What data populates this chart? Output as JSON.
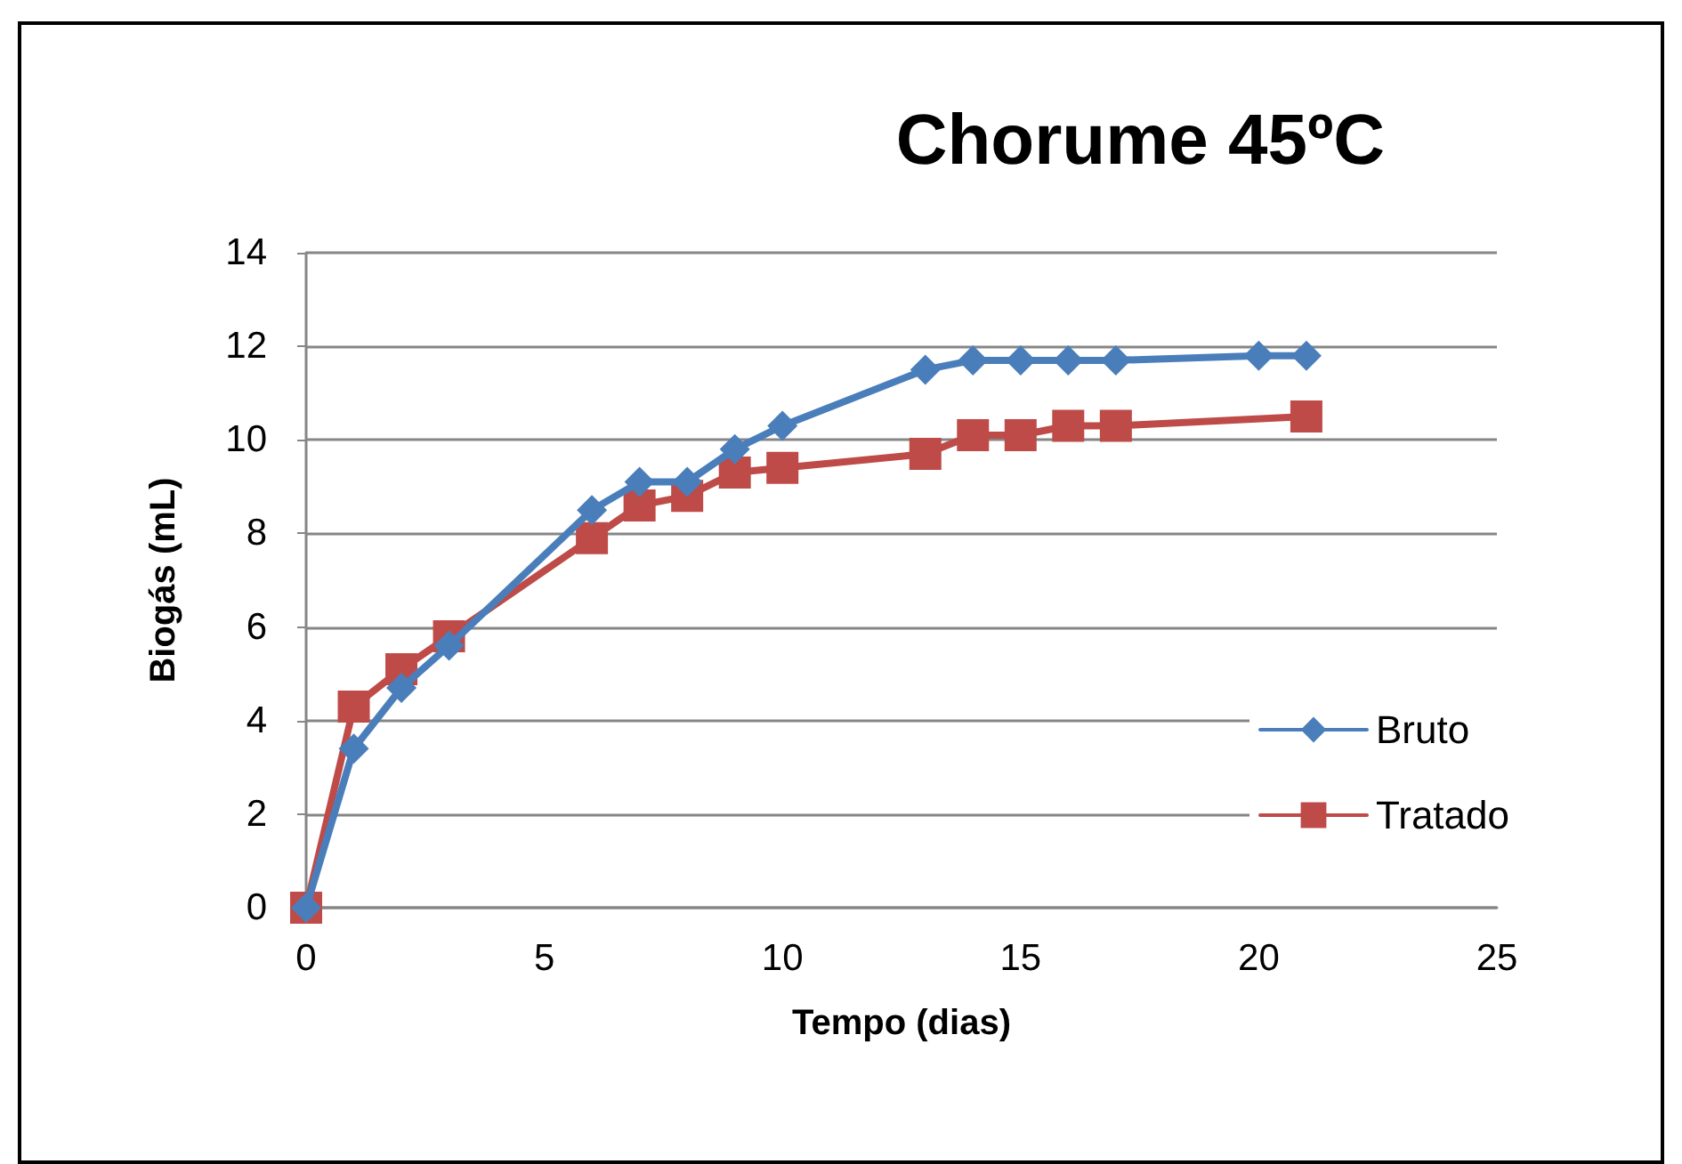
{
  "chart_data": {
    "type": "line",
    "title": "Chorume 45ºC",
    "xlabel": "Tempo (dias)",
    "ylabel": "Biogás (mL)",
    "xlim": [
      0,
      25
    ],
    "xticks": [
      0,
      5,
      10,
      15,
      20,
      25
    ],
    "ylim": [
      0,
      14
    ],
    "yticks": [
      0,
      2,
      4,
      6,
      8,
      10,
      12,
      14
    ],
    "grid": "y",
    "legend": "right",
    "series": [
      {
        "name": "Bruto",
        "color": "#4a7ebb",
        "marker": "diamond",
        "x": [
          0,
          1,
          2,
          3,
          6,
          7,
          8,
          9,
          10,
          13,
          14,
          15,
          16,
          17,
          20,
          21
        ],
        "values": [
          0,
          3.4,
          4.7,
          5.6,
          8.5,
          9.1,
          9.1,
          9.8,
          10.3,
          11.5,
          11.7,
          11.7,
          11.7,
          11.7,
          11.8,
          11.8
        ]
      },
      {
        "name": "Tratado",
        "color": "#be4b48",
        "marker": "square",
        "x": [
          0,
          1,
          2,
          3,
          6,
          7,
          8,
          9,
          10,
          13,
          14,
          15,
          16,
          17,
          21
        ],
        "values": [
          0,
          4.3,
          5.1,
          5.8,
          7.9,
          8.6,
          8.8,
          9.3,
          9.4,
          9.7,
          10.1,
          10.1,
          10.3,
          10.3,
          10.5
        ]
      }
    ]
  }
}
